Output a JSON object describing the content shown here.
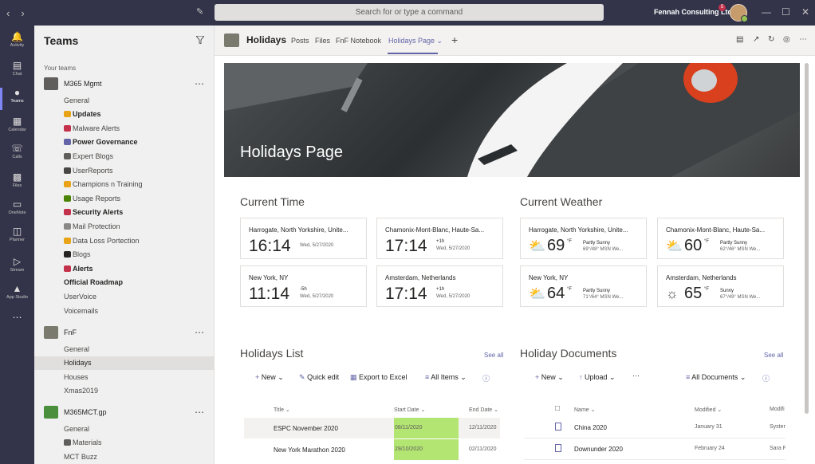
{
  "search": {
    "placeholder": "Search for or type a command"
  },
  "org": "Fennah Consulting Ltd",
  "notif_count": "5",
  "rail": [
    "Activity",
    "Chat",
    "Teams",
    "Calendar",
    "Calls",
    "Files",
    "OneNote",
    "Planner",
    "Stream",
    "App Studio"
  ],
  "panel": {
    "title": "Teams",
    "your_teams": "Your teams"
  },
  "teams": [
    {
      "name": "M365 Mgmt",
      "channels": [
        {
          "label": "General"
        },
        {
          "label": "Updates",
          "bold": true
        },
        {
          "label": "Malware Alerts"
        },
        {
          "label": "Power Governance",
          "bold": true
        },
        {
          "label": "Expert Blogs"
        },
        {
          "label": "UserReports"
        },
        {
          "label": "Champions n Training"
        },
        {
          "label": "Usage Reports"
        },
        {
          "label": "Security Alerts",
          "bold": true
        },
        {
          "label": "Mail Protection"
        },
        {
          "label": "Data Loss Portection"
        },
        {
          "label": "Blogs"
        },
        {
          "label": "Alerts",
          "bold": true
        },
        {
          "label": "Official Roadmap",
          "bold": true
        },
        {
          "label": "UserVoice"
        },
        {
          "label": "Voicemails"
        }
      ]
    },
    {
      "name": "FnF",
      "channels": [
        {
          "label": "General"
        },
        {
          "label": "Holidays",
          "selected": true
        },
        {
          "label": "Houses"
        },
        {
          "label": "Xmas2019"
        }
      ]
    },
    {
      "name": "M365MCT.gp",
      "channels": [
        {
          "label": "General"
        },
        {
          "label": "Materials"
        },
        {
          "label": "MCT Buzz"
        }
      ]
    }
  ],
  "channel": {
    "name": "Holidays",
    "tabs": [
      "Posts",
      "Files",
      "FnF Notebook",
      "Holidays Page"
    ]
  },
  "hero": {
    "title": "Holidays Page"
  },
  "current_time": {
    "heading": "Current Time",
    "cards": [
      {
        "loc": "Harrogate, North Yorkshire, Unite...",
        "time": "16:14",
        "offset": "",
        "date": "Wed, 5/27/2020"
      },
      {
        "loc": "Chamonix-Mont-Blanc, Haute-Sa...",
        "time": "17:14",
        "offset": "+1h",
        "date": "Wed, 5/27/2020"
      },
      {
        "loc": "New York, NY",
        "time": "11:14",
        "offset": "-5h",
        "date": "Wed, 5/27/2020"
      },
      {
        "loc": "Amsterdam, Netherlands",
        "time": "17:14",
        "offset": "+1h",
        "date": "Wed, 5/27/2020"
      }
    ]
  },
  "current_weather": {
    "heading": "Current Weather",
    "cards": [
      {
        "loc": "Harrogate, North Yorkshire, Unite...",
        "temp": "69",
        "unit": "°F",
        "cond": "Partly Sunny",
        "hl": "69°/48°   MSN We...",
        "icon": "partly-sunny-icon"
      },
      {
        "loc": "Chamonix-Mont-Blanc, Haute-Sa...",
        "temp": "60",
        "unit": "°F",
        "cond": "Partly Sunny",
        "hl": "62°/46°   MSN We...",
        "icon": "partly-sunny-icon"
      },
      {
        "loc": "New York, NY",
        "temp": "64",
        "unit": "°F",
        "cond": "Partly Sunny",
        "hl": "71°/64°   MSN We...",
        "icon": "partly-sunny-icon"
      },
      {
        "loc": "Amsterdam, Netherlands",
        "temp": "65",
        "unit": "°F",
        "cond": "Sunny",
        "hl": "67°/49°   MSN We...",
        "icon": "sunny-icon"
      }
    ]
  },
  "holidays_list": {
    "heading": "Holidays List",
    "see_all": "See all",
    "new": "New",
    "quick_edit": "Quick edit",
    "export": "Export to Excel",
    "view": "All Items",
    "cols": [
      "Title",
      "Start Date",
      "End Date"
    ],
    "rows": [
      {
        "title": "ESPC November 2020",
        "start": "08/11/2020",
        "end": "12/11/2020"
      },
      {
        "title": "New York Marathon 2020",
        "start": "29/10/2020",
        "end": "02/11/2020"
      }
    ]
  },
  "holiday_docs": {
    "heading": "Holiday Documents",
    "see_all": "See all",
    "new": "New",
    "upload": "Upload",
    "view": "All Documents",
    "cols": [
      "Name",
      "Modified",
      "Modifi"
    ],
    "rows": [
      {
        "name": "China 2020",
        "modified": "January 31",
        "by": "Syster"
      },
      {
        "name": "Downunder 2020",
        "modified": "February 24",
        "by": "Sara F"
      }
    ]
  }
}
